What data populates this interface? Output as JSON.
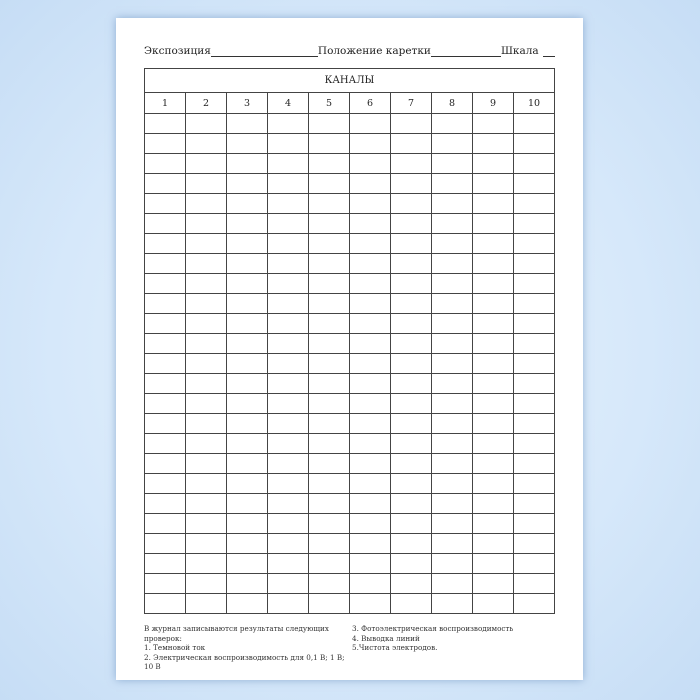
{
  "header": {
    "exposure_label": "Экспозиция",
    "carriage_label": "Положение каретки",
    "scale_label": "Шкала"
  },
  "table": {
    "title": "КАНАЛЫ",
    "columns": [
      "1",
      "2",
      "3",
      "4",
      "5",
      "6",
      "7",
      "8",
      "9",
      "10"
    ],
    "empty_rows": 25
  },
  "notes": {
    "intro": "В журнал записываются результаты следующих проверок:",
    "items": [
      "1. Темновой ток",
      "2. Электрическая воспроизводимость для 0,1 В; 1 В; 10 В",
      "3. Фотоэлектрическая воспроизводимость",
      "4. Выводка линий",
      "5.Чистота электродов."
    ]
  }
}
